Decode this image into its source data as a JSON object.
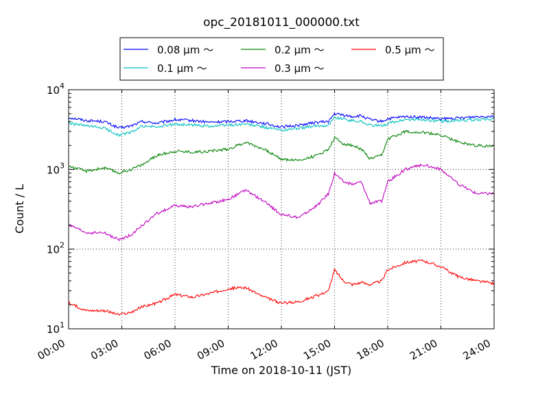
{
  "chart_data": {
    "type": "line",
    "title": "opc_20181011_000000.txt",
    "xlabel": "Time on 2018-10-11 (JST)",
    "ylabel": "Count / L",
    "y_scale": "log",
    "xlim": [
      "00:00",
      "24:00"
    ],
    "ylim": [
      10,
      10000
    ],
    "grid": true,
    "legend_position": "top-center",
    "x_ticks": [
      "00:00",
      "03:00",
      "06:00",
      "09:00",
      "12:00",
      "15:00",
      "18:00",
      "21:00",
      "24:00"
    ],
    "y_ticks": [
      {
        "base": "10",
        "exp": "1"
      },
      {
        "base": "10",
        "exp": "2"
      },
      {
        "base": "10",
        "exp": "3"
      },
      {
        "base": "10",
        "exp": "4"
      }
    ],
    "x": [
      "00:00",
      "01:00",
      "02:00",
      "02:50",
      "03:30",
      "04:10",
      "05:00",
      "06:00",
      "07:00",
      "08:00",
      "09:00",
      "10:00",
      "11:00",
      "12:00",
      "13:00",
      "14:00",
      "14:40",
      "15:00",
      "15:30",
      "16:00",
      "16:30",
      "17:00",
      "17:40",
      "18:00",
      "19:00",
      "20:00",
      "21:00",
      "22:00",
      "23:00",
      "24:00"
    ],
    "series": [
      {
        "name": "0.08 μm ～",
        "color": "#0000ff",
        "values": [
          4500,
          4100,
          4000,
          3300,
          3500,
          4000,
          3800,
          4200,
          4100,
          3900,
          4000,
          4100,
          3800,
          3400,
          3600,
          3900,
          4000,
          5000,
          4800,
          4600,
          4700,
          4200,
          4000,
          4300,
          4600,
          4500,
          4300,
          4400,
          4600,
          4700
        ]
      },
      {
        "name": "0.1 μm ～",
        "color": "#00bfbf",
        "values": [
          3800,
          3500,
          3300,
          2700,
          2900,
          3500,
          3400,
          3700,
          3600,
          3500,
          3600,
          3700,
          3400,
          3100,
          3300,
          3500,
          3600,
          4500,
          4300,
          4100,
          4000,
          3600,
          3500,
          3800,
          4200,
          4200,
          4000,
          4100,
          4200,
          4300
        ]
      },
      {
        "name": "0.2 μm ～",
        "color": "#008000",
        "values": [
          1100,
          950,
          1050,
          900,
          1000,
          1150,
          1500,
          1700,
          1650,
          1700,
          1800,
          2200,
          1800,
          1350,
          1300,
          1500,
          1800,
          2500,
          2100,
          2000,
          1800,
          1350,
          1500,
          2400,
          3000,
          2900,
          2700,
          2200,
          2000,
          1950
        ]
      },
      {
        "name": "0.3 μm ～",
        "color": "#bf00bf",
        "values": [
          200,
          160,
          160,
          130,
          150,
          200,
          280,
          350,
          340,
          380,
          420,
          550,
          400,
          270,
          250,
          350,
          500,
          900,
          700,
          650,
          700,
          380,
          400,
          700,
          1000,
          1150,
          1000,
          650,
          500,
          500
        ]
      },
      {
        "name": "0.5 μm ～",
        "color": "#ff0000",
        "values": [
          21,
          17,
          17,
          15,
          16,
          19,
          21,
          27,
          25,
          28,
          32,
          33,
          25,
          21,
          22,
          26,
          30,
          55,
          40,
          36,
          38,
          36,
          40,
          55,
          68,
          72,
          60,
          45,
          40,
          37
        ]
      }
    ]
  }
}
